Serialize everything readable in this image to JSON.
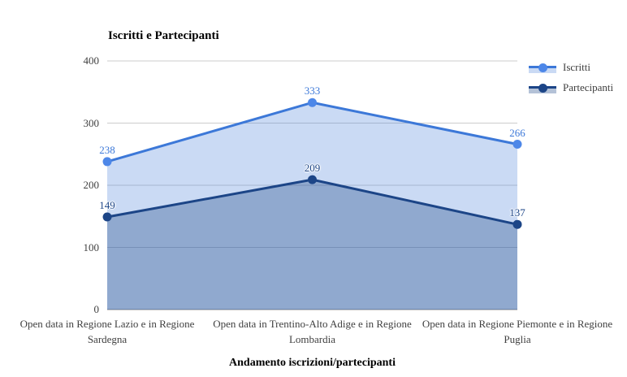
{
  "title": "Iscritti e Partecipanti",
  "chart_data": {
    "type": "area",
    "title": "Iscritti e Partecipanti",
    "xlabel": "Andamento iscrizioni/partecipanti",
    "ylabel": "",
    "categories": [
      "Open data in Regione Lazio e in Regione Sardegna",
      "Open data in Trentino-Alto Adige e in Regione Lombardia",
      "Open data in Regione Piemonte e in Regione Puglia"
    ],
    "series": [
      {
        "name": "Iscritti",
        "values": [
          238,
          333,
          266
        ],
        "color": "#3c78d8",
        "point_color": "#4d87e8",
        "fill": "rgba(60,120,216,0.27)",
        "label_color": "#3c78d8"
      },
      {
        "name": "Partecipanti",
        "values": [
          149,
          209,
          137
        ],
        "color": "#1c4587",
        "point_color": "#1c4587",
        "fill": "rgba(28,69,135,0.33)",
        "label_color": "#1c4587"
      }
    ],
    "ylim": [
      0,
      400
    ],
    "yticks": [
      0,
      100,
      200,
      300,
      400
    ],
    "grid": true,
    "legend_position": "right-top",
    "point_labels": true
  },
  "colors": {
    "background": "#ffffff",
    "grid": "#cccccc",
    "baseline": "#8a8a8a",
    "axis_text": "#404040",
    "title_text": "#000000",
    "legend_text": "#3d3d3d"
  }
}
